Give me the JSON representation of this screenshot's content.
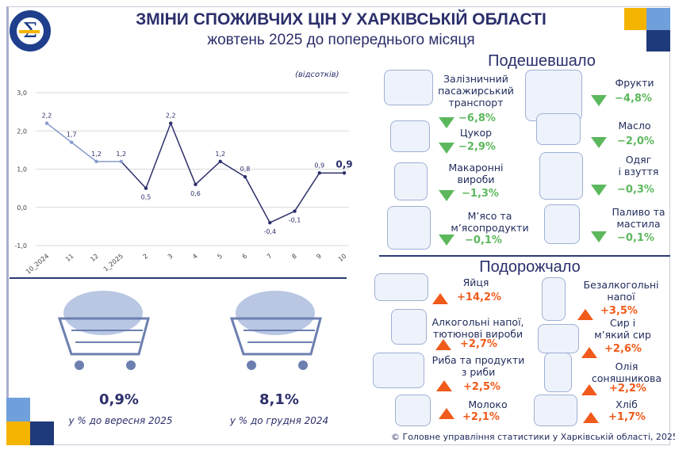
{
  "header": {
    "title": "ЗМІНИ СПОЖИВЧИХ ЦІН У ХАРКІВСЬКІЙ ОБЛАСТІ",
    "subtitle": "жовтень 2025 до попереднього місяця",
    "logo_text": "ДЕРЖСТАТ УКРАЇНИ"
  },
  "colors": {
    "navy": "#2b2f6b",
    "light_series": "#8a9ccc",
    "decrease": "#5cb85c",
    "increase": "#f05a1a",
    "orange_square": "#f5b400",
    "light_blue_square": "#6fa0dc",
    "dark_square": "#1f3a7a"
  },
  "chart_data": {
    "type": "line",
    "unit_label": "(відсотків)",
    "categories": [
      "10_2024",
      "11",
      "12",
      "1_2025",
      "2",
      "3",
      "4",
      "5",
      "6",
      "7",
      "8",
      "9",
      "10"
    ],
    "values": [
      2.2,
      1.7,
      1.2,
      1.2,
      0.5,
      2.2,
      0.6,
      1.2,
      0.8,
      -0.4,
      -0.1,
      0.9,
      0.9
    ],
    "data_labels": [
      "2,2",
      "1,7",
      "1,2",
      "1,2",
      "0,5",
      "2,2",
      "0,6",
      "1,2",
      "0,8",
      "-0,4",
      "-0,1",
      "0,9",
      "0,9"
    ],
    "ylim": [
      -1.0,
      3.0
    ],
    "yticks": [
      3.0,
      2.0,
      1.0,
      0.0,
      -1.0
    ],
    "ytick_labels": [
      "3,0",
      "2,0",
      "1,0",
      "0,0",
      "-1,0"
    ],
    "grid": true
  },
  "summary": [
    {
      "value": "0,9%",
      "caption": "у % до вересня 2025",
      "icon": "shopping-cart-groceries"
    },
    {
      "value": "8,1%",
      "caption": "у % до грудня 2024",
      "icon": "shopping-cart-groceries"
    }
  ],
  "cheaper": {
    "title": "Подешевшало",
    "items": [
      {
        "label": "Залізничний\nпасажирський\nтранспорт",
        "value": "−6,8%",
        "icon": "train-icon"
      },
      {
        "label": "Цукор",
        "value": "−2,9%",
        "icon": "sugar-cubes-icon"
      },
      {
        "label": "Макаронні\nвироби",
        "value": "−1,3%",
        "icon": "pasta-bag-icon"
      },
      {
        "label": "М’ясо та\nм’ясопродукти",
        "value": "−0,1%",
        "icon": "meat-icon"
      },
      {
        "label": "Фрукти",
        "value": "−4,8%",
        "icon": "fruits-icon"
      },
      {
        "label": "Масло",
        "value": "−2,0%",
        "icon": "butter-icon"
      },
      {
        "label": "Одяг\nі взуття",
        "value": "−0,3%",
        "icon": "clothes-icon"
      },
      {
        "label": "Паливо та\nмастила",
        "value": "−0,1%",
        "icon": "fuel-pump-icon"
      }
    ]
  },
  "pricier": {
    "title": "Подорожчало",
    "items": [
      {
        "label": "Яйця",
        "value": "+14,2%",
        "icon": "eggs-icon"
      },
      {
        "label": "Алкогольні напої,\nтютюнові вироби",
        "value": "+2,7%",
        "icon": "bottle-icon"
      },
      {
        "label": "Риба та продукти\nз риби",
        "value": "+2,5%",
        "icon": "fish-icon"
      },
      {
        "label": "Молоко",
        "value": "+2,1%",
        "icon": "milk-icon"
      },
      {
        "label": "Безалкогольні\nнапої",
        "value": "+3,5%",
        "icon": "soft-drink-icon"
      },
      {
        "label": "Сир і\nм’який сир",
        "value": "+2,6%",
        "icon": "cheese-icon"
      },
      {
        "label": "Олія\nсоняшникова",
        "value": "+2,2%",
        "icon": "oil-bottle-icon"
      },
      {
        "label": "Хліб",
        "value": "+1,7%",
        "icon": "bread-icon"
      }
    ]
  },
  "footer": "© Головне управління статистики у Харківській області, 2025"
}
